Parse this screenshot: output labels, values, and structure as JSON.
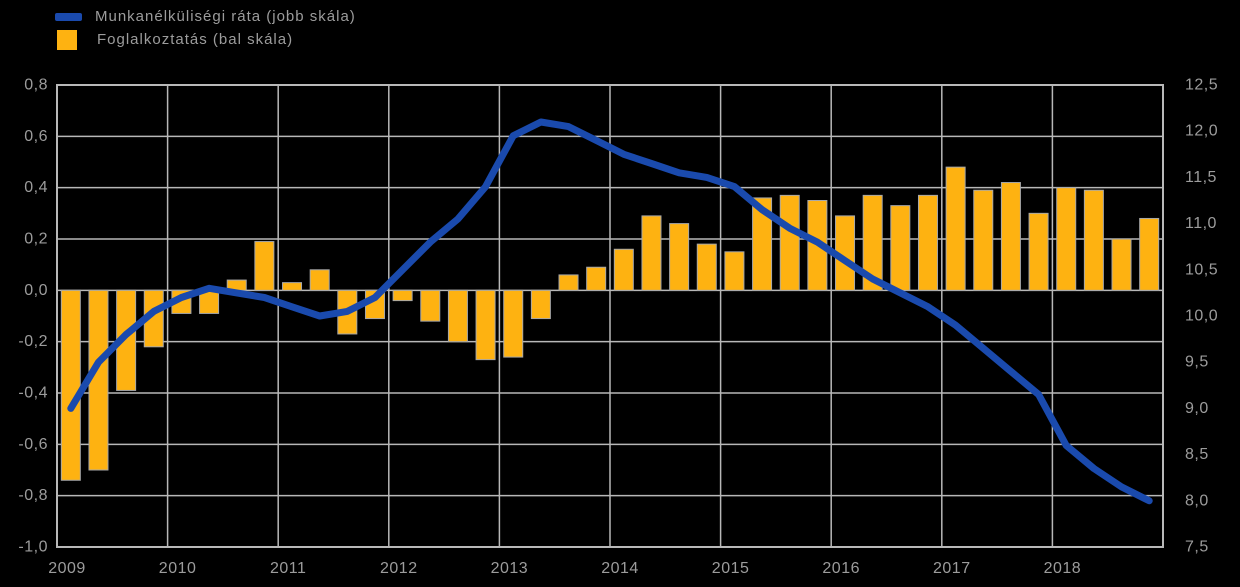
{
  "legend": {
    "items": [
      {
        "label": "Munkanélküliségi ráta (jobb skála)",
        "swatch": "line",
        "color": "#1a4aad"
      },
      {
        "label": "Foglalkoztatás (bal skála)",
        "swatch": "square",
        "color": "#feb211"
      }
    ]
  },
  "colors": {
    "background": "#000000",
    "gridline": "#b8b8b8",
    "bar_fill": "#feb211",
    "bar_border": "#a8a8a8",
    "line": "#1a4aad",
    "axis_text": "#9c9c9c"
  },
  "chart_data": {
    "type": "bar+line",
    "title": "",
    "x": {
      "years": [
        "2009",
        "2010",
        "2011",
        "2012",
        "2013",
        "2014",
        "2015",
        "2016",
        "2017",
        "2018"
      ],
      "quarters_per_year": 4
    },
    "left_axis": {
      "ticks": [
        "0,8",
        "0,6",
        "0,4",
        "0,2",
        "0,0",
        "-0,2",
        "-0,4",
        "-0,6",
        "-0,8",
        "-1,0"
      ],
      "max": 0.8,
      "min": -1.0,
      "grid": true
    },
    "right_axis": {
      "ticks": [
        "12,5",
        "12,0",
        "11,5",
        "11,0",
        "10,5",
        "10,0",
        "9,5",
        "9,0",
        "8,5",
        "8,0",
        "7,5"
      ],
      "max": 12.5,
      "min": 7.5,
      "grid": false
    },
    "legend_position": "top-left",
    "series": [
      {
        "name": "Foglalkoztatás (bal skála)",
        "type": "bar",
        "axis": "left",
        "values": [
          -0.74,
          -0.7,
          -0.39,
          -0.22,
          -0.09,
          -0.09,
          0.04,
          0.19,
          0.03,
          0.08,
          -0.17,
          -0.11,
          -0.04,
          -0.12,
          -0.2,
          -0.27,
          -0.26,
          -0.11,
          0.06,
          0.09,
          0.16,
          0.29,
          0.26,
          0.18,
          0.15,
          0.36,
          0.37,
          0.35,
          0.29,
          0.37,
          0.33,
          0.37,
          0.48,
          0.39,
          0.42,
          0.3,
          0.4,
          0.39,
          0.2,
          0.28
        ]
      },
      {
        "name": "Munkanélküliségi ráta (jobb skála)",
        "type": "line",
        "axis": "right",
        "values": [
          9.0,
          9.5,
          9.8,
          10.05,
          10.2,
          10.3,
          10.25,
          10.2,
          10.1,
          10.0,
          10.05,
          10.2,
          10.5,
          10.8,
          11.05,
          11.4,
          11.95,
          12.1,
          12.05,
          11.9,
          11.75,
          11.65,
          11.55,
          11.5,
          11.4,
          11.15,
          10.95,
          10.8,
          10.6,
          10.4,
          10.25,
          10.1,
          9.9,
          9.65,
          9.4,
          9.15,
          8.6,
          8.35,
          8.15,
          8.0
        ]
      }
    ]
  }
}
